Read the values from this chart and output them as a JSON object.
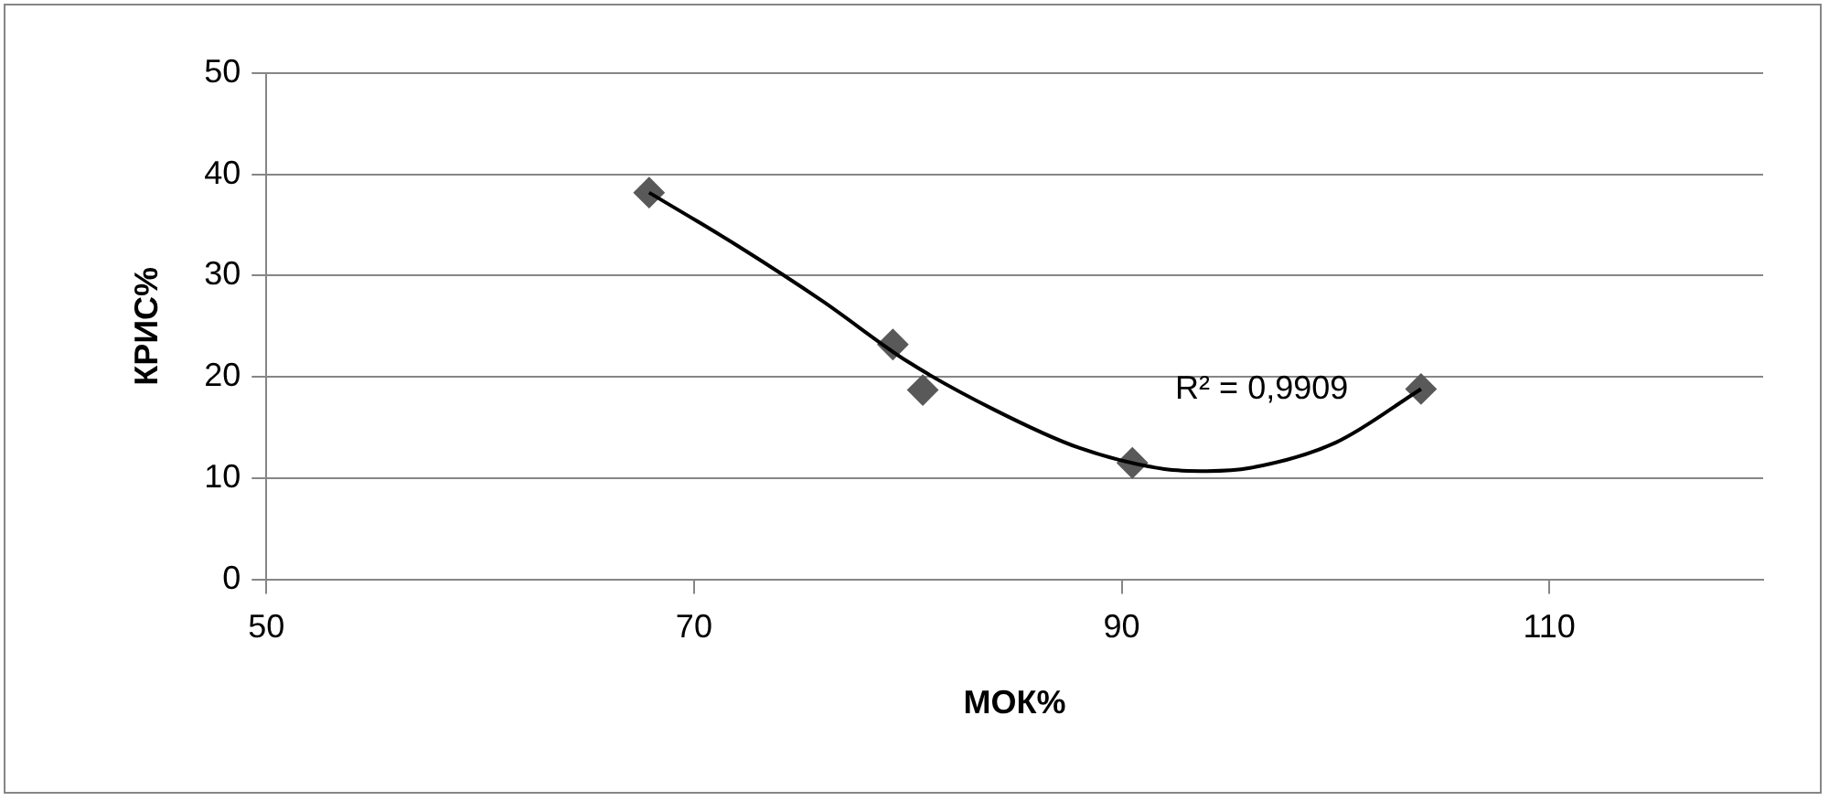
{
  "chart_data": {
    "type": "scatter",
    "xlabel": "МОК%",
    "ylabel": "КРИС%",
    "xlim": [
      50,
      120
    ],
    "xticks": [
      50,
      70,
      90,
      110
    ],
    "ylim": [
      0,
      50
    ],
    "yticks": [
      0,
      10,
      20,
      30,
      40,
      50
    ],
    "grid": "y",
    "legend": false,
    "marker": "diamond",
    "series": [
      {
        "color": "#595959",
        "x": [
          67.9,
          79.3,
          80.7,
          90.5,
          104
        ],
        "values": [
          38.2,
          23.2,
          18.7,
          11.5,
          18.8
        ]
      },
      {
        "type": "line",
        "color": "#000000",
        "marker": "none",
        "line_style": "solid",
        "x": [
          67.9,
          72,
          76,
          80,
          84,
          88,
          92,
          94,
          96,
          100,
          104
        ],
        "values": [
          38.2,
          33.0,
          27.5,
          21.5,
          16.8,
          13.0,
          10.9,
          10.7,
          11.0,
          13.5,
          18.8
        ]
      }
    ],
    "annotations": [
      "R² = 0,9909"
    ]
  }
}
